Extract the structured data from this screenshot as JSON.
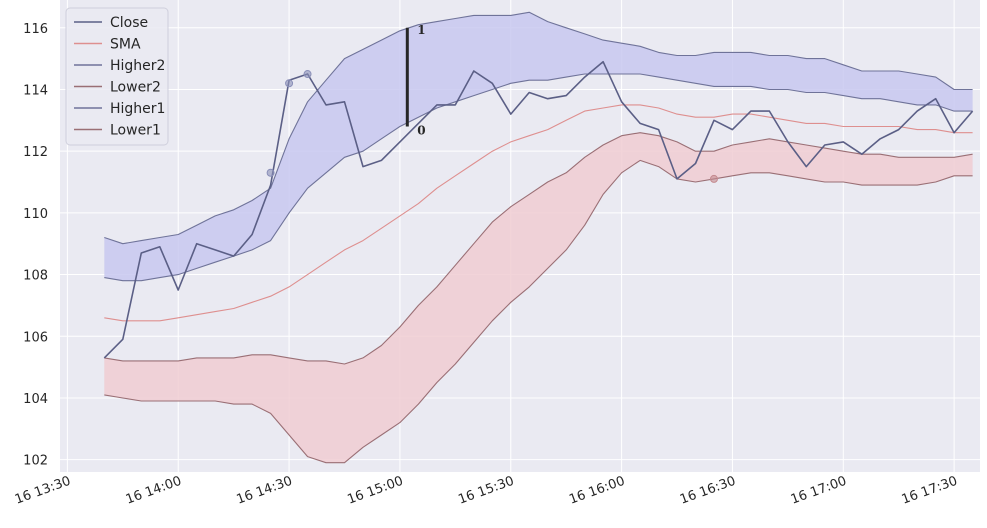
{
  "chart_data": {
    "type": "line",
    "title": "",
    "xlabel": "",
    "ylabel": "",
    "x_ticks": [
      "16 13:30",
      "16 14:00",
      "16 14:30",
      "16 15:00",
      "16 15:30",
      "16 16:00",
      "16 16:30",
      "16 17:00",
      "16 17:30"
    ],
    "x_tick_minutes": [
      810,
      840,
      870,
      900,
      930,
      960,
      990,
      1020,
      1050
    ],
    "xlim_minutes": [
      808,
      1057
    ],
    "y_ticks": [
      102,
      104,
      106,
      108,
      110,
      112,
      114,
      116
    ],
    "ylim": [
      101.6,
      116.9
    ],
    "grid": true,
    "legend_position": "top-left",
    "x_minutes": [
      820,
      825,
      830,
      835,
      840,
      845,
      850,
      855,
      860,
      865,
      870,
      875,
      880,
      885,
      890,
      895,
      900,
      905,
      910,
      915,
      920,
      925,
      930,
      935,
      940,
      945,
      950,
      955,
      960,
      965,
      970,
      975,
      980,
      985,
      990,
      995,
      1000,
      1005,
      1010,
      1015,
      1020,
      1025,
      1030,
      1035,
      1040,
      1045,
      1050,
      1055
    ],
    "series": [
      {
        "name": "Close",
        "color": "#5b5f86",
        "values": [
          105.3,
          105.9,
          108.7,
          108.9,
          107.5,
          109.0,
          108.8,
          108.6,
          109.3,
          110.9,
          114.3,
          114.5,
          113.5,
          113.6,
          111.5,
          111.7,
          112.3,
          112.9,
          113.5,
          113.5,
          114.6,
          114.2,
          113.2,
          113.9,
          113.7,
          113.8,
          114.4,
          114.9,
          113.6,
          112.9,
          112.7,
          111.1,
          111.6,
          113.0,
          112.7,
          113.3,
          113.3,
          112.3,
          111.5,
          112.2,
          112.3,
          111.9,
          112.4,
          112.7,
          113.3,
          113.7,
          112.6,
          113.3
        ]
      },
      {
        "name": "SMA",
        "color": "#de8f8f",
        "values": [
          106.6,
          106.5,
          106.5,
          106.5,
          106.6,
          106.7,
          106.8,
          106.9,
          107.1,
          107.3,
          107.6,
          108.0,
          108.4,
          108.8,
          109.1,
          109.5,
          109.9,
          110.3,
          110.8,
          111.2,
          111.6,
          112.0,
          112.3,
          112.5,
          112.7,
          113.0,
          113.3,
          113.4,
          113.5,
          113.5,
          113.4,
          113.2,
          113.1,
          113.1,
          113.2,
          113.2,
          113.1,
          113.0,
          112.9,
          112.9,
          112.8,
          112.8,
          112.8,
          112.8,
          112.7,
          112.7,
          112.6,
          112.6
        ]
      },
      {
        "name": "Higher2",
        "color": "#6f7399",
        "values": [
          109.2,
          109.0,
          109.1,
          109.2,
          109.3,
          109.6,
          109.9,
          110.1,
          110.4,
          110.8,
          112.4,
          113.6,
          114.3,
          115.0,
          115.3,
          115.6,
          115.9,
          116.1,
          116.2,
          116.3,
          116.4,
          116.4,
          116.4,
          116.5,
          116.2,
          116.0,
          115.8,
          115.6,
          115.5,
          115.4,
          115.2,
          115.1,
          115.1,
          115.2,
          115.2,
          115.2,
          115.1,
          115.1,
          115.0,
          115.0,
          114.8,
          114.6,
          114.6,
          114.6,
          114.5,
          114.4,
          114.0,
          114.0
        ]
      },
      {
        "name": "Lower2",
        "color": "#9a6f75",
        "values": [
          104.1,
          104.0,
          103.9,
          103.9,
          103.9,
          103.9,
          103.9,
          103.8,
          103.8,
          103.5,
          102.8,
          102.1,
          101.9,
          101.9,
          102.4,
          102.8,
          103.2,
          103.8,
          104.5,
          105.1,
          105.8,
          106.5,
          107.1,
          107.6,
          108.2,
          108.8,
          109.6,
          110.6,
          111.3,
          111.7,
          111.5,
          111.1,
          111.0,
          111.1,
          111.2,
          111.3,
          111.3,
          111.2,
          111.1,
          111.0,
          111.0,
          110.9,
          110.9,
          110.9,
          110.9,
          111.0,
          111.2,
          111.2
        ]
      },
      {
        "name": "Higher1",
        "color": "#6f7399",
        "values": [
          107.9,
          107.8,
          107.8,
          107.9,
          108.0,
          108.2,
          108.4,
          108.6,
          108.8,
          109.1,
          110.0,
          110.8,
          111.3,
          111.8,
          112.0,
          112.4,
          112.8,
          113.1,
          113.4,
          113.6,
          113.8,
          114.0,
          114.2,
          114.3,
          114.3,
          114.4,
          114.5,
          114.5,
          114.5,
          114.5,
          114.4,
          114.3,
          114.2,
          114.1,
          114.1,
          114.1,
          114.0,
          114.0,
          113.9,
          113.9,
          113.8,
          113.7,
          113.7,
          113.6,
          113.5,
          113.5,
          113.3,
          113.3
        ]
      },
      {
        "name": "Lower1",
        "color": "#9a6f75",
        "values": [
          105.3,
          105.2,
          105.2,
          105.2,
          105.2,
          105.3,
          105.3,
          105.3,
          105.4,
          105.4,
          105.3,
          105.2,
          105.2,
          105.1,
          105.3,
          105.7,
          106.3,
          107.0,
          107.6,
          108.3,
          109.0,
          109.7,
          110.2,
          110.6,
          111.0,
          111.3,
          111.8,
          112.2,
          112.5,
          112.6,
          112.5,
          112.3,
          112.0,
          112.0,
          112.2,
          112.3,
          112.4,
          112.3,
          112.2,
          112.1,
          112.0,
          111.9,
          111.9,
          111.8,
          111.8,
          111.8,
          111.8,
          111.9
        ]
      }
    ],
    "fills": [
      {
        "between": [
          "Higher1",
          "Higher2"
        ],
        "color": "#c8c8f0"
      },
      {
        "between": [
          "Lower1",
          "Lower2"
        ],
        "color": "#f0cdd2"
      }
    ],
    "markers": [
      {
        "x_minute": 865,
        "y": 111.3,
        "color": "#8a8fb8"
      },
      {
        "x_minute": 870,
        "y": 114.2,
        "color": "#8a8fb8"
      },
      {
        "x_minute": 875,
        "y": 114.5,
        "color": "#8a8fb8"
      },
      {
        "x_minute": 985,
        "y": 111.1,
        "color": "#c48a8f"
      }
    ],
    "annotation": {
      "x_minute": 902,
      "y_from": 112.8,
      "y_to": 116.0,
      "label_bottom": "0",
      "label_top": "1"
    }
  }
}
